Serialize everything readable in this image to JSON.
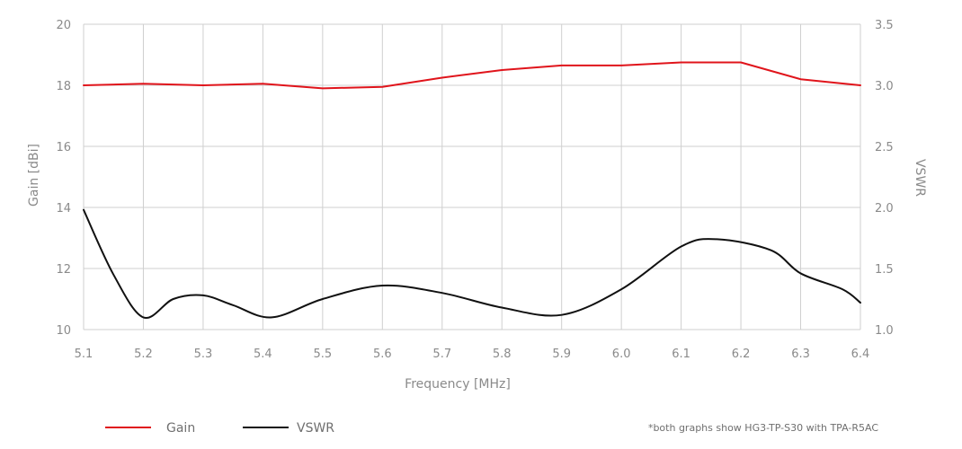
{
  "chart_data": {
    "type": "line",
    "xlabel": "Frequency [MHz]",
    "ylabel": "Gain [dBi]",
    "y2label": "VSWR",
    "xlim": [
      5.1,
      6.4
    ],
    "ylim": [
      10,
      20
    ],
    "y2lim": [
      1.0,
      3.5
    ],
    "xticks": [
      "5.1",
      "5.2",
      "5.3",
      "5.4",
      "5.5",
      "5.6",
      "5.7",
      "5.8",
      "5.9",
      "6.0",
      "6.1",
      "6.2",
      "6.3",
      "6.4"
    ],
    "yticks": [
      "10",
      "12",
      "14",
      "16",
      "18",
      "20"
    ],
    "y2ticks": [
      "1.0",
      "1.5",
      "2.0",
      "2.5",
      "3.0",
      "3.5"
    ],
    "grid": true,
    "legend_position": "bottom-left",
    "series": [
      {
        "name": "Gain",
        "axis": "left",
        "color": "#e0141b",
        "x": [
          5.1,
          5.2,
          5.3,
          5.4,
          5.5,
          5.6,
          5.7,
          5.8,
          5.9,
          6.0,
          6.1,
          6.2,
          6.3,
          6.4
        ],
        "values": [
          18.0,
          18.05,
          18.0,
          18.05,
          17.9,
          17.95,
          18.25,
          18.5,
          18.65,
          18.65,
          18.75,
          18.75,
          18.2,
          18.0
        ]
      },
      {
        "name": "VSWR",
        "axis": "right",
        "color": "#111111",
        "x": [
          5.1,
          5.15,
          5.2,
          5.25,
          5.3,
          5.35,
          5.415,
          5.5,
          5.6,
          5.7,
          5.8,
          5.9,
          6.0,
          6.1,
          6.16,
          6.25,
          6.3,
          6.37,
          6.4
        ],
        "values": [
          1.98,
          1.45,
          1.1,
          1.25,
          1.28,
          1.2,
          1.1,
          1.25,
          1.36,
          1.3,
          1.18,
          1.12,
          1.33,
          1.68,
          1.74,
          1.65,
          1.46,
          1.33,
          1.22
        ]
      }
    ]
  },
  "footnote": "*both graphs show HG3-TP-S30 with TPA-R5AC"
}
